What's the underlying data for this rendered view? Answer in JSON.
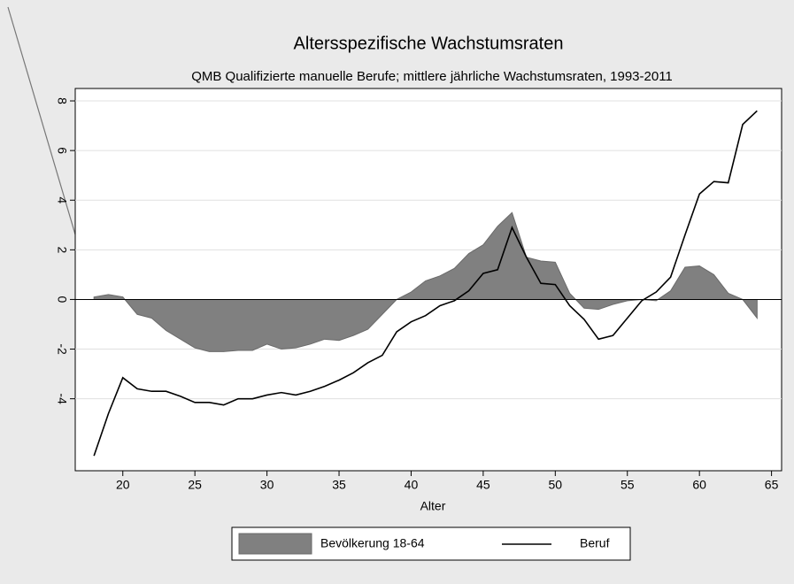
{
  "chart_data": {
    "type": "area_line",
    "title": "Altersspezifische Wachstumsraten",
    "subtitle": "QMB Qualifizierte manuelle Berufe; mittlere jährliche Wachstumsraten, 1993-2011",
    "x_label": "Alter",
    "x": [
      18,
      19,
      20,
      21,
      22,
      23,
      24,
      25,
      26,
      27,
      28,
      29,
      30,
      31,
      32,
      33,
      34,
      35,
      36,
      37,
      38,
      39,
      40,
      41,
      42,
      43,
      44,
      45,
      46,
      47,
      48,
      49,
      50,
      51,
      52,
      53,
      54,
      55,
      56,
      57,
      58,
      59,
      60,
      61,
      62,
      63,
      64
    ],
    "series": [
      {
        "name": "Bevölkerung 18-64",
        "kind": "area",
        "color": "#808080",
        "values": [
          0.1,
          0.2,
          0.1,
          -0.6,
          -0.75,
          -1.25,
          -1.6,
          -1.95,
          -2.1,
          -2.1,
          -2.05,
          -2.05,
          -1.8,
          -2.0,
          -1.95,
          -1.8,
          -1.6,
          -1.65,
          -1.45,
          -1.2,
          -0.6,
          0.0,
          0.3,
          0.75,
          0.95,
          1.25,
          1.85,
          2.2,
          2.95,
          3.5,
          1.7,
          1.55,
          1.5,
          0.25,
          -0.35,
          -0.4,
          -0.2,
          -0.05,
          0.0,
          -0.05,
          0.35,
          1.3,
          1.35,
          1.0,
          0.25,
          0.0,
          -0.75
        ]
      },
      {
        "name": "Beruf",
        "kind": "line",
        "color": "#000000",
        "values": [
          -6.3,
          -4.6,
          -3.15,
          -3.6,
          -3.7,
          -3.7,
          -3.9,
          -4.15,
          -4.15,
          -4.25,
          -4.0,
          -4.0,
          -3.85,
          -3.75,
          -3.85,
          -3.7,
          -3.5,
          -3.25,
          -2.95,
          -2.55,
          -2.25,
          -1.3,
          -0.9,
          -0.65,
          -0.25,
          -0.05,
          0.35,
          1.05,
          1.2,
          2.9,
          1.7,
          0.65,
          0.6,
          -0.25,
          -0.8,
          -1.6,
          -1.45,
          -0.75,
          -0.05,
          0.3,
          0.9,
          2.6,
          4.25,
          4.75,
          4.7,
          7.05,
          7.6
        ]
      }
    ],
    "xlim": [
      16.7,
      65.7
    ],
    "ylim": [
      -6.9,
      8.5
    ],
    "xticks": [
      20,
      25,
      30,
      35,
      40,
      45,
      50,
      55,
      60,
      65
    ],
    "yticks": [
      -4,
      -2,
      0,
      2,
      4,
      6,
      8
    ],
    "grid": true,
    "legend": "bottom"
  }
}
